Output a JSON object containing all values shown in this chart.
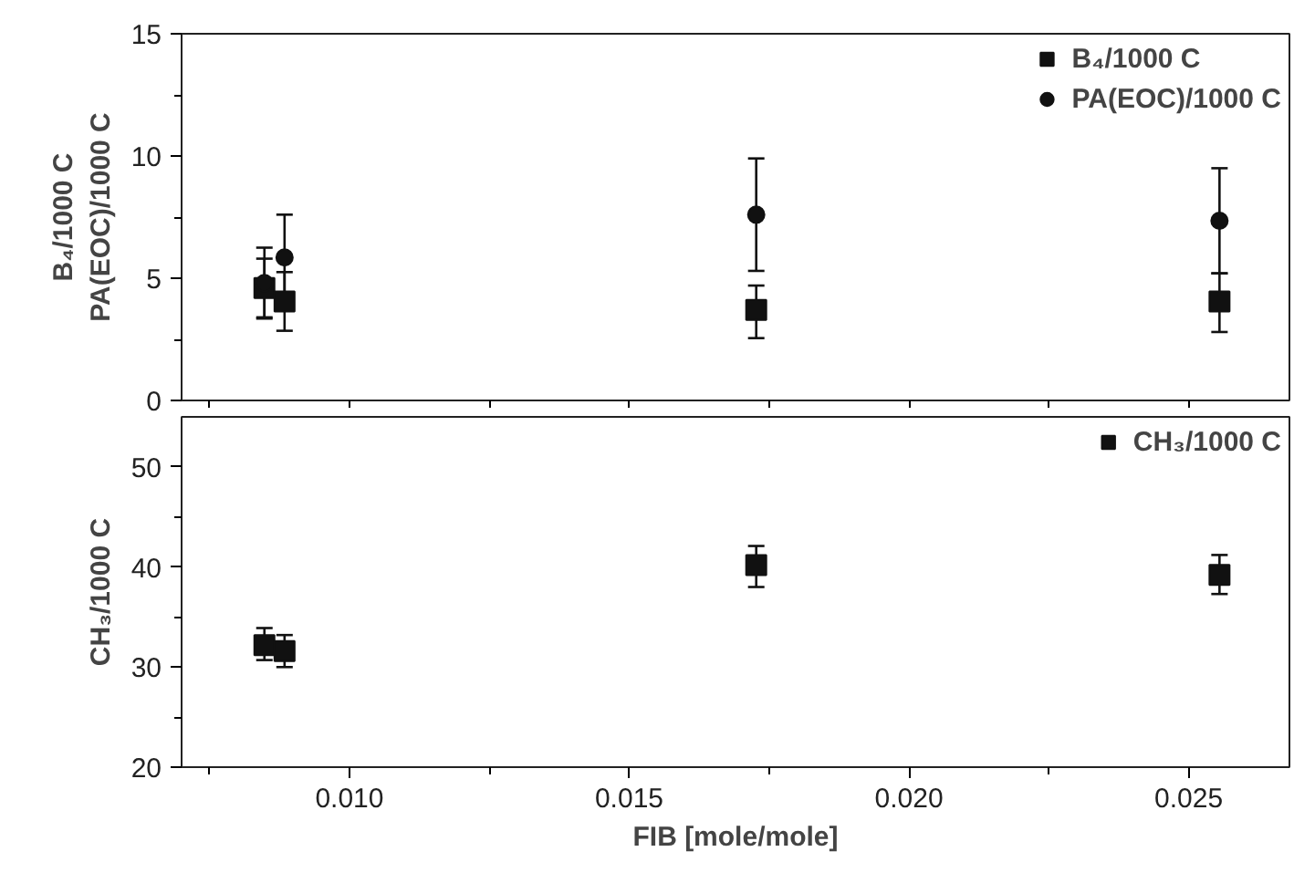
{
  "chart_data": [
    {
      "type": "scatter",
      "ylabel": "B₄/1000 C\nPA(EOC)/1000 C",
      "x": [
        0.00848,
        0.00884,
        0.01727,
        0.02555
      ],
      "series": [
        {
          "name": "B₄/1000 C",
          "color": "#111111",
          "marker": "square",
          "values": [
            4.6,
            4.05,
            3.7,
            4.05
          ],
          "errors": [
            1.2,
            1.2,
            [
              2.55,
              4.7
            ],
            [
              2.8,
              5.2
            ]
          ]
        },
        {
          "name": "PA(EOC)/1000 C",
          "color": "#111111",
          "marker": "circle",
          "values": [
            4.8,
            5.85,
            7.6,
            7.35
          ],
          "errors": [
            [
              3.35,
              6.25
            ],
            1.75,
            [
              5.3,
              9.9
            ],
            [
              5.2,
              9.5
            ]
          ]
        }
      ],
      "xlim": [
        0.007,
        0.0268
      ],
      "xticks": [
        {
          "value": 0.0075,
          "label": null
        },
        {
          "value": 0.01,
          "label": null
        },
        {
          "value": 0.0125,
          "label": null
        },
        {
          "value": 0.015,
          "label": null
        },
        {
          "value": 0.0175,
          "label": null
        },
        {
          "value": 0.02,
          "label": null
        },
        {
          "value": 0.0225,
          "label": null
        },
        {
          "value": 0.025,
          "label": null
        }
      ],
      "ylim": [
        0,
        15
      ],
      "yticks": [
        0,
        {
          "value": 2.5,
          "label": null
        },
        5,
        {
          "value": 7.5,
          "label": null
        },
        10,
        {
          "value": 12.5,
          "label": null
        },
        15
      ],
      "tick_labels": "y",
      "legend": "top right",
      "grid": false
    },
    {
      "type": "scatter",
      "xlabel": "FIB [mole/mole]",
      "ylabel": "CH₃/1000 C",
      "x": [
        0.00848,
        0.00884,
        0.01727,
        0.02555
      ],
      "series": [
        {
          "name": "CH₃/1000 C",
          "color": "#111111",
          "marker": "square",
          "values": [
            32.2,
            31.6,
            40.2,
            39.2
          ],
          "errors": [
            [
              30.7,
              33.9
            ],
            [
              30.0,
              33.2
            ],
            [
              38.0,
              42.1
            ],
            [
              37.3,
              41.2
            ]
          ]
        }
      ],
      "xlim": [
        0.007,
        0.0268
      ],
      "xticks": [
        {
          "value": 0.0075,
          "label": null
        },
        {
          "value": 0.01,
          "label": "0.010"
        },
        {
          "value": 0.0125,
          "label": null
        },
        {
          "value": 0.015,
          "label": "0.015"
        },
        {
          "value": 0.0175,
          "label": null
        },
        {
          "value": 0.02,
          "label": "0.020"
        },
        {
          "value": 0.0225,
          "label": null
        },
        {
          "value": 0.025,
          "label": "0.025"
        }
      ],
      "ylim": [
        20,
        55
      ],
      "yticks": [
        20,
        {
          "value": 25,
          "label": null
        },
        30,
        {
          "value": 35,
          "label": null
        },
        40,
        {
          "value": 45,
          "label": null
        },
        50
      ],
      "legend": "top right",
      "grid": false
    }
  ]
}
